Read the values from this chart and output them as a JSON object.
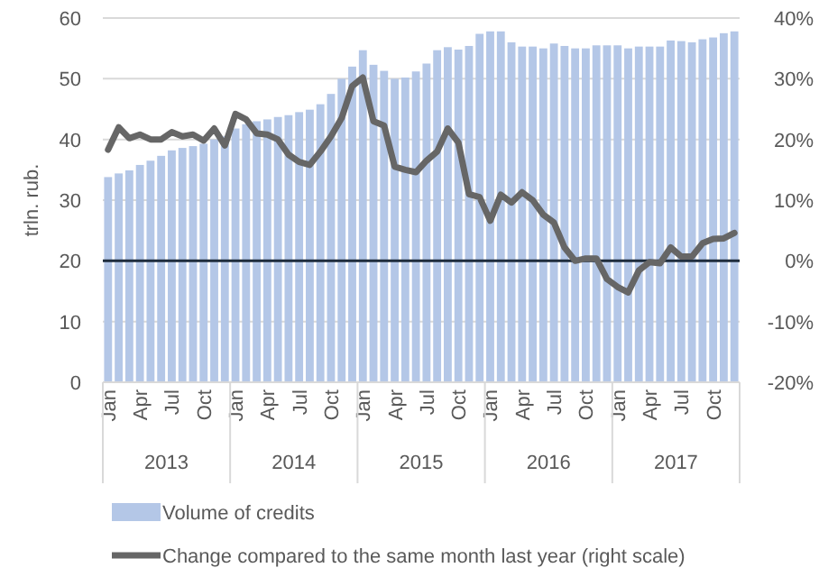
{
  "chart_data": {
    "type": "bar",
    "ylabel": "trln. rub.",
    "categories": [
      "Jan",
      null,
      null,
      "Apr",
      null,
      null,
      "Jul",
      null,
      null,
      "Oct",
      null,
      null,
      "Jan",
      null,
      null,
      "Apr",
      null,
      null,
      "Jul",
      null,
      null,
      "Oct",
      null,
      null,
      "Jan",
      null,
      null,
      "Apr",
      null,
      null,
      "Jul",
      null,
      null,
      "Oct",
      null,
      null,
      "Jan",
      null,
      null,
      "Apr",
      null,
      null,
      "Jul",
      null,
      null,
      "Oct",
      null,
      null,
      "Jan",
      null,
      null,
      "Apr",
      null,
      null,
      "Jul",
      null,
      null,
      "Oct",
      null,
      null
    ],
    "series": [
      {
        "name": "Volume of credits",
        "color": "#b4c7e7",
        "values": [
          33.8,
          34.4,
          34.9,
          35.8,
          36.5,
          37.3,
          38.2,
          38.6,
          38.9,
          39.3,
          40.0,
          40.5,
          41.8,
          42.5,
          43.0,
          43.3,
          43.7,
          44.0,
          44.5,
          44.9,
          45.8,
          47.5,
          50.0,
          52.0,
          54.7,
          52.3,
          51.3,
          50.0,
          50.2,
          51.2,
          52.5,
          54.7,
          55.2,
          54.8,
          55.4,
          57.4,
          57.8,
          57.8,
          56.0,
          55.3,
          55.3,
          55.0,
          55.8,
          55.4,
          55.0,
          55.0,
          55.5,
          55.5,
          55.5,
          55.0,
          55.3,
          55.3,
          55.3,
          56.3,
          56.2,
          56.0,
          56.5,
          56.8,
          57.5,
          57.8
        ]
      },
      {
        "name": "Change compared to the same month last year (right scale)",
        "type": "line",
        "axis": "y2",
        "color": "#666666",
        "values": [
          18.3,
          22,
          20.2,
          20.8,
          20,
          20,
          21.2,
          20.5,
          20.8,
          19.8,
          21.8,
          19,
          24.2,
          23.3,
          21,
          20.8,
          20,
          17.5,
          16.3,
          15.8,
          18,
          20.5,
          23.5,
          28.8,
          30.2,
          23,
          22.3,
          15.5,
          15,
          14.6,
          16.5,
          18,
          21.8,
          19.5,
          11,
          10.5,
          6.6,
          10.9,
          9.6,
          11.3,
          10,
          7.6,
          6.3,
          2.2,
          0,
          0.4,
          0.4,
          -3,
          -4.3,
          -5.2,
          -1.6,
          -0.2,
          -0.4,
          2.2,
          0.7,
          0.7,
          2.9,
          3.6,
          3.7,
          4.6
        ]
      }
    ],
    "ylim": [
      0,
      60
    ],
    "yticks": [
      0,
      10,
      20,
      30,
      40,
      50,
      60
    ],
    "y2lim": [
      -20,
      40
    ],
    "y2ticks": [
      {
        "value": -20,
        "label": "-20%"
      },
      {
        "value": -10,
        "label": "-10%"
      },
      {
        "value": 0,
        "label": "0%"
      },
      {
        "value": 10,
        "label": "10%"
      },
      {
        "value": 20,
        "label": "20%"
      },
      {
        "value": 30,
        "label": "30%"
      },
      {
        "value": 40,
        "label": "40%"
      }
    ],
    "ref_lines": [
      {
        "axis": "y2",
        "value": 0,
        "color": "#1f2d3d"
      }
    ],
    "annotations": [
      "2013",
      "2014",
      "2015",
      "2016",
      "2017"
    ],
    "grid": "y",
    "legend": "bottom",
    "marker": "none",
    "line_style": "solid"
  }
}
